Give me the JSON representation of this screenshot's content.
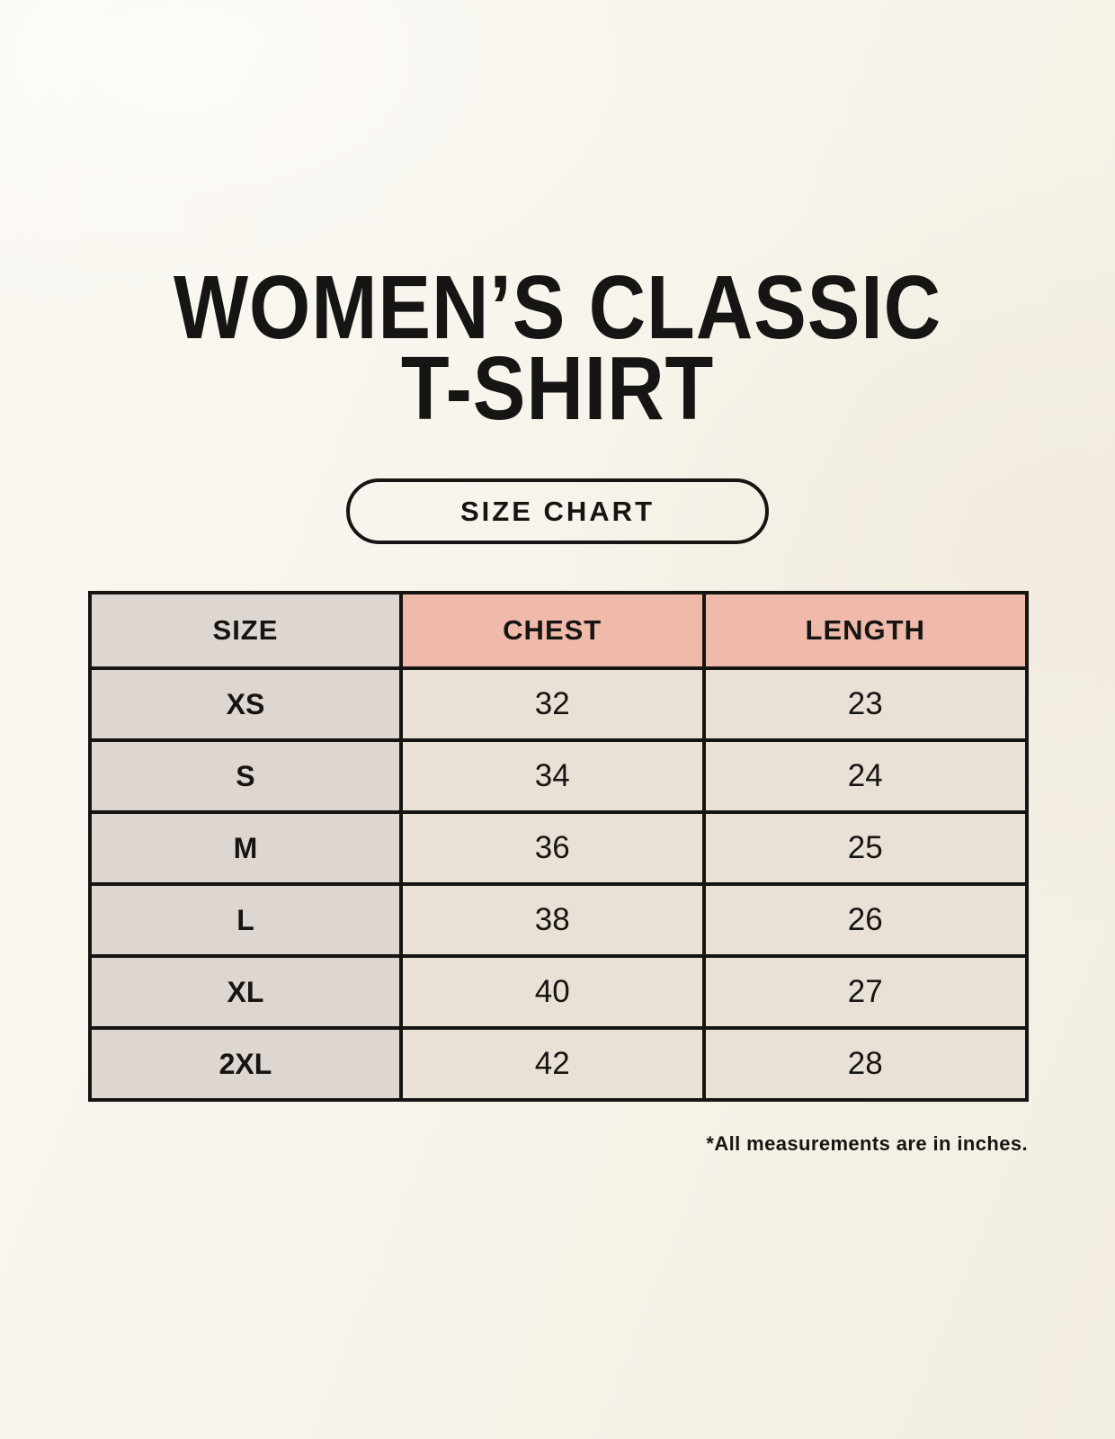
{
  "header": {
    "title_line1": "WOMEN’S CLASSIC",
    "title_line2": "T-SHIRT",
    "badge_label": "SIZE CHART"
  },
  "chart_data": {
    "type": "table",
    "title": "WOMEN’S CLASSIC T-SHIRT",
    "columns": [
      "SIZE",
      "CHEST",
      "LENGTH"
    ],
    "rows": [
      [
        "XS",
        32,
        23
      ],
      [
        "S",
        34,
        24
      ],
      [
        "M",
        36,
        25
      ],
      [
        "L",
        38,
        26
      ],
      [
        "XL",
        40,
        27
      ],
      [
        "2XL",
        42,
        28
      ]
    ],
    "units_note": "*All measurements are in inches."
  },
  "footnote": "*All measurements are in inches.",
  "colors": {
    "background": "#f8f4ec",
    "size_column_bg": "#ded6d0",
    "measure_header_bg": "#efbaaa",
    "data_cell_bg": "#e9e1d5",
    "border": "#171513",
    "text": "#171513"
  }
}
